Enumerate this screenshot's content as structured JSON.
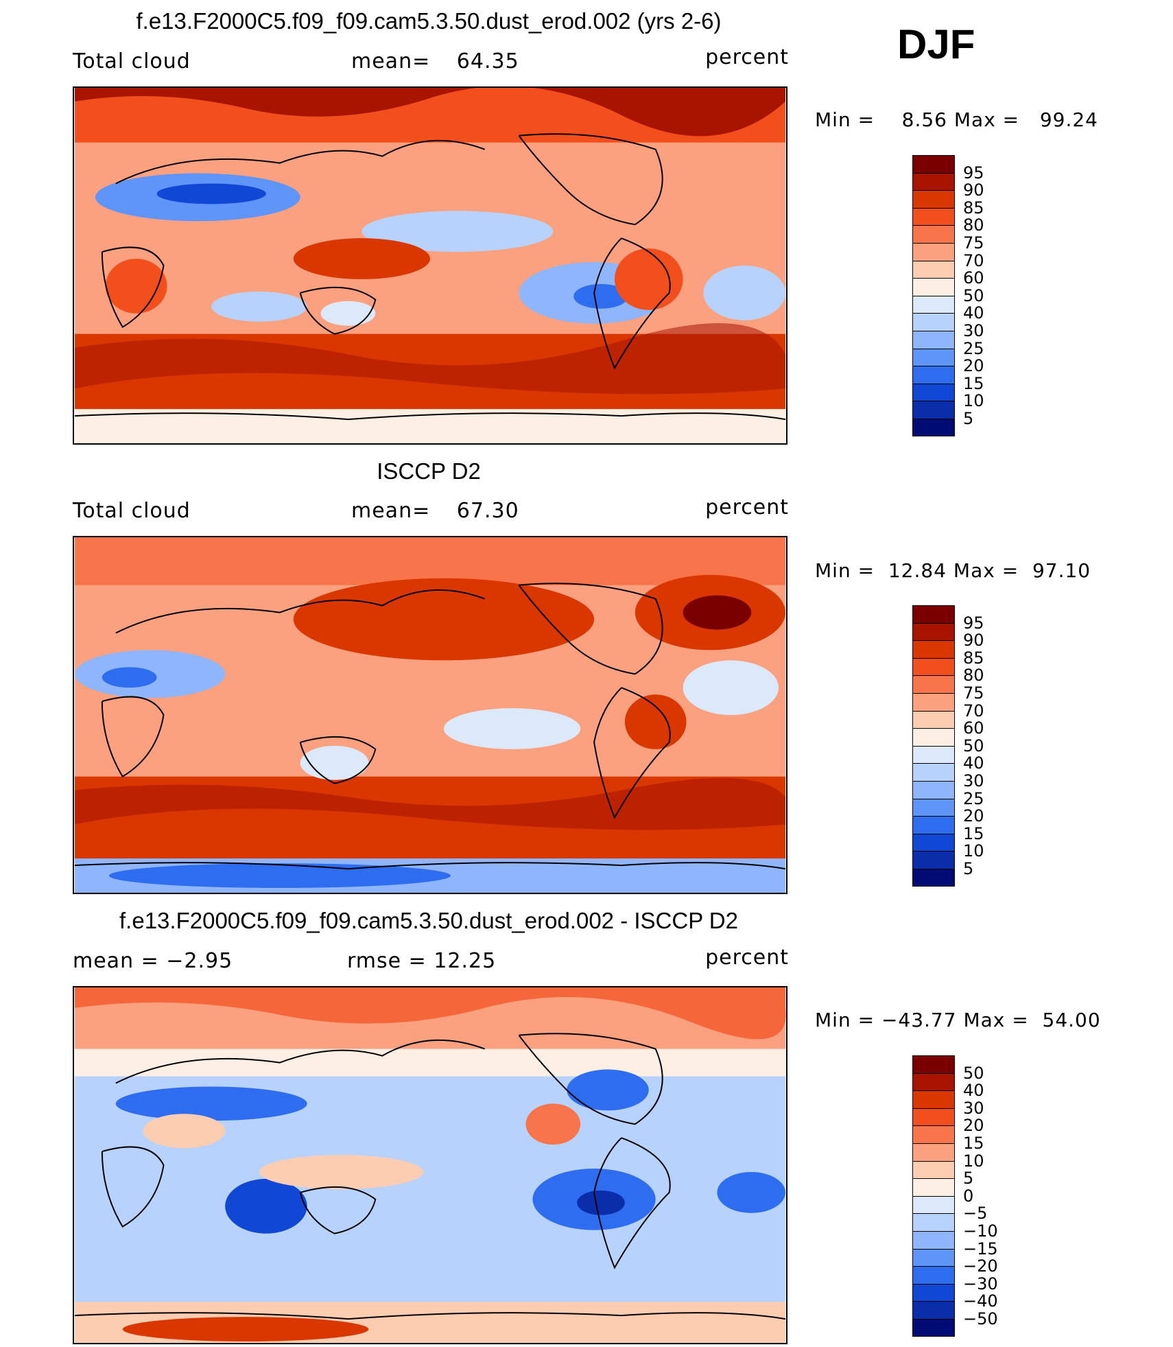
{
  "season": "DJF",
  "units": "percent",
  "panels": [
    {
      "title": "f.e13.F2000C5.f09_f09.cam5.3.50.dust_erod.002 (yrs 2-6)",
      "variable": "Total cloud",
      "stat_label": "mean=",
      "stat_value": "64.35",
      "minmax": "Min =    8.56 Max =   99.24",
      "colorbar": {
        "labels": [
          "95",
          "90",
          "85",
          "80",
          "75",
          "70",
          "60",
          "50",
          "40",
          "30",
          "25",
          "20",
          "15",
          "10",
          "5"
        ],
        "colors": [
          "#7a0000",
          "#a81400",
          "#d93600",
          "#f24f1c",
          "#f8744a",
          "#fba180",
          "#fdcdb2",
          "#fdefe4",
          "#dbe9fb",
          "#b7d3fd",
          "#8fb6fc",
          "#5f94f8",
          "#2f6df0",
          "#1147d5",
          "#0a2eaa",
          "#000b73"
        ]
      }
    },
    {
      "title": "ISCCP D2",
      "variable": "Total cloud",
      "stat_label": "mean=",
      "stat_value": "67.30",
      "minmax": "Min =  12.84 Max =  97.10",
      "colorbar": {
        "labels": [
          "95",
          "90",
          "85",
          "80",
          "75",
          "70",
          "60",
          "50",
          "40",
          "30",
          "25",
          "20",
          "15",
          "10",
          "5"
        ],
        "colors": [
          "#7a0000",
          "#a81400",
          "#d93600",
          "#f24f1c",
          "#f8744a",
          "#fba180",
          "#fdcdb2",
          "#fdefe4",
          "#dbe9fb",
          "#b7d3fd",
          "#8fb6fc",
          "#5f94f8",
          "#2f6df0",
          "#1147d5",
          "#0a2eaa",
          "#000b73"
        ]
      }
    },
    {
      "title": "f.e13.F2000C5.f09_f09.cam5.3.50.dust_erod.002 - ISCCP D2",
      "stat1": "mean =   −2.95",
      "stat2": "rmse =   12.25",
      "minmax": "Min = −43.77 Max =  54.00",
      "colorbar": {
        "labels": [
          "50",
          "40",
          "30",
          "20",
          "15",
          "10",
          "5",
          "0",
          "−5",
          "−10",
          "−15",
          "−20",
          "−30",
          "−40",
          "−50"
        ],
        "colors": [
          "#7a0000",
          "#a81400",
          "#d93600",
          "#f24f1c",
          "#f8744a",
          "#fba180",
          "#fdcdb2",
          "#fdefe4",
          "#dbe9fb",
          "#b7d3fd",
          "#8fb6fc",
          "#5f94f8",
          "#2f6df0",
          "#1147d5",
          "#0a2eaa",
          "#000b73"
        ]
      }
    }
  ]
}
